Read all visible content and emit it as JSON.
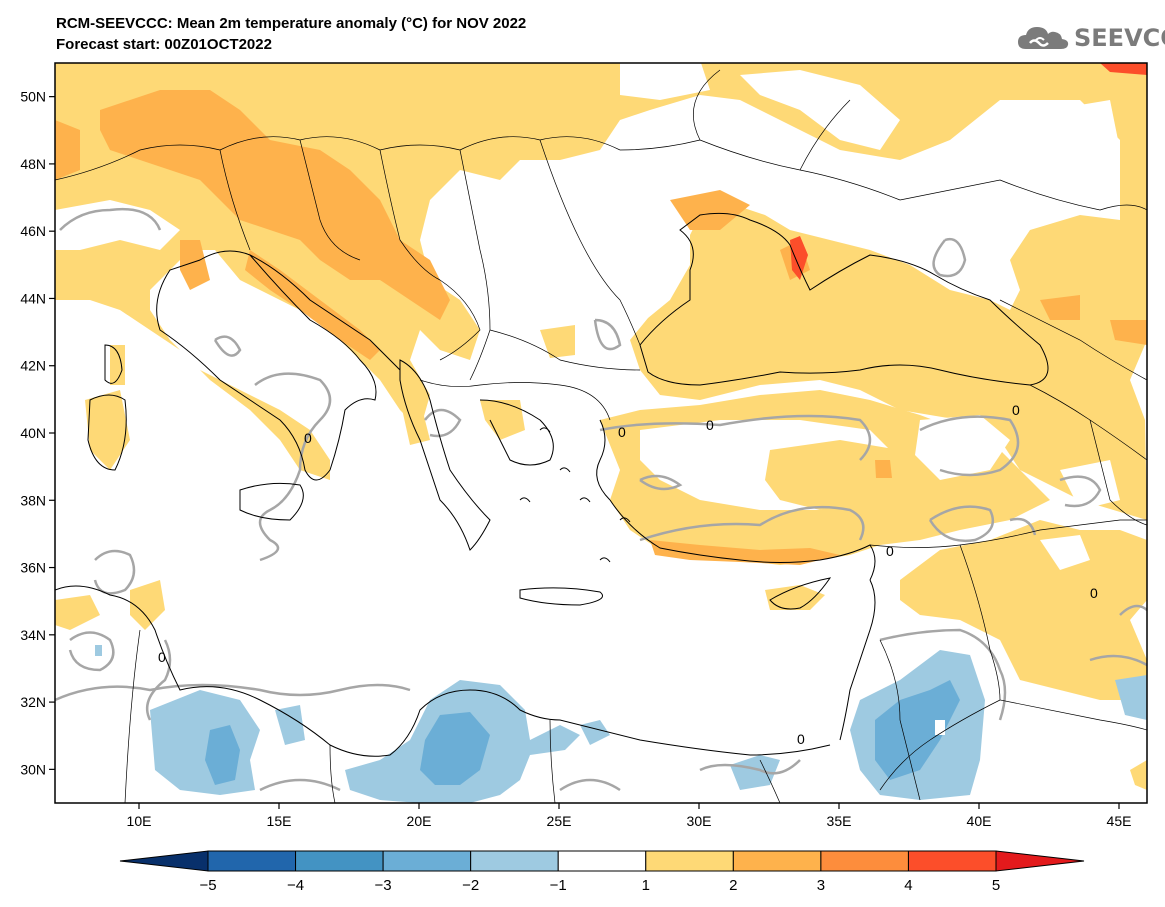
{
  "header": {
    "title": "RCM-SEEVCCC: Mean 2m temperature anomaly (°C) for NOV 2022",
    "subtitle": "Forecast start: 00Z01OCT2022",
    "logo_text": "SEEVCCC",
    "logo_icon": "cloud-logo-icon"
  },
  "map": {
    "lon_range": [
      7,
      46
    ],
    "lat_range": [
      29,
      51
    ],
    "lon_ticks": [
      {
        "value": 10,
        "label": "10E"
      },
      {
        "value": 15,
        "label": "15E"
      },
      {
        "value": 20,
        "label": "20E"
      },
      {
        "value": 25,
        "label": "25E"
      },
      {
        "value": 30,
        "label": "30E"
      },
      {
        "value": 35,
        "label": "35E"
      },
      {
        "value": 40,
        "label": "40E"
      },
      {
        "value": 45,
        "label": "45E"
      }
    ],
    "lat_ticks": [
      {
        "value": 30,
        "label": "30N"
      },
      {
        "value": 32,
        "label": "32N"
      },
      {
        "value": 34,
        "label": "34N"
      },
      {
        "value": 36,
        "label": "36N"
      },
      {
        "value": 38,
        "label": "38N"
      },
      {
        "value": 40,
        "label": "40N"
      },
      {
        "value": 42,
        "label": "42N"
      },
      {
        "value": 44,
        "label": "44N"
      },
      {
        "value": 46,
        "label": "46N"
      },
      {
        "value": 48,
        "label": "48N"
      },
      {
        "value": 50,
        "label": "50N"
      }
    ],
    "zero_contour_label": "0"
  },
  "colorbar": {
    "colors": [
      "#08306b",
      "#2166ac",
      "#4393c3",
      "#6baed6",
      "#9ecae1",
      "#ffffff",
      "#fed976",
      "#feb24c",
      "#fd8d3c",
      "#fc4e2a",
      "#e31a1c"
    ],
    "labels": [
      "−5",
      "−4",
      "−3",
      "−2",
      "−1",
      "1",
      "2",
      "3",
      "4",
      "5"
    ]
  },
  "palette": {
    "anom_1_2": "#fed976",
    "anom_2_3": "#feb24c",
    "anom_3_4": "#fd8d3c",
    "anom_4_5": "#fc4e2a",
    "anom_m1_m2": "#9ecae1",
    "anom_m2_m3": "#6baed6",
    "sea": "#ffffff",
    "contour": "#a6a6a6"
  }
}
